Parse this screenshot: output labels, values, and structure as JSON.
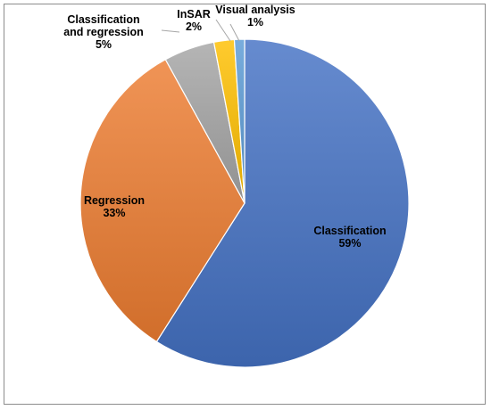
{
  "chart_data": {
    "type": "pie",
    "title": "",
    "slices": [
      {
        "label_lines": [
          "Classification"
        ],
        "value": 59,
        "value_label": "59%",
        "color": "#4472C4"
      },
      {
        "label_lines": [
          "Regression"
        ],
        "value": 33,
        "value_label": "33%",
        "color": "#ED7D31"
      },
      {
        "label_lines": [
          "Classification",
          "and regression"
        ],
        "value": 5,
        "value_label": "5%",
        "color": "#A5A5A5"
      },
      {
        "label_lines": [
          "InSAR"
        ],
        "value": 2,
        "value_label": "2%",
        "color": "#FFC000"
      },
      {
        "label_lines": [
          "Visual analysis"
        ],
        "value": 1,
        "value_label": "1%",
        "color": "#5B9BD5"
      }
    ],
    "start_angle": "12 o'clock",
    "direction": "clockwise",
    "legend": "none"
  }
}
